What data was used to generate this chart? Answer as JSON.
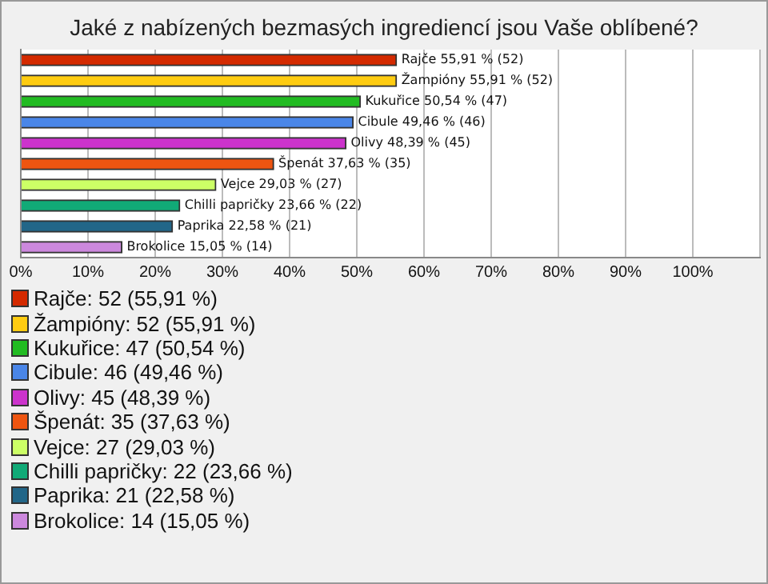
{
  "chart_data": {
    "type": "bar",
    "orientation": "horizontal",
    "stacked": true,
    "title": "Jaké z nabízených bezmasých ingrediencí jsou Vaše oblíbené?",
    "categories": [
      null,
      null,
      null,
      null,
      null,
      null,
      null,
      null,
      null,
      null
    ],
    "series": [
      {
        "name": "Rajče: 52 (55,91 %)",
        "color": "#d42a00",
        "values": [
          55.91,
          null,
          null,
          null,
          null,
          null,
          null,
          null,
          null,
          null
        ],
        "value_labels": [
          "Rajče 55,91 % (52)",
          null,
          null,
          null,
          null,
          null,
          null,
          null,
          null,
          null
        ]
      },
      {
        "name": "Žampióny: 52 (55,91 %)",
        "color": "#ffcc11",
        "values": [
          null,
          55.91,
          null,
          null,
          null,
          null,
          null,
          null,
          null,
          null
        ],
        "value_labels": [
          null,
          "Žampióny 55,91 % (52)",
          null,
          null,
          null,
          null,
          null,
          null,
          null,
          null
        ]
      },
      {
        "name": "Kukuřice: 47 (50,54 %)",
        "color": "#22bb22",
        "values": [
          null,
          null,
          50.54,
          null,
          null,
          null,
          null,
          null,
          null,
          null
        ],
        "value_labels": [
          null,
          null,
          "Kukuřice 50,54 % (47)",
          null,
          null,
          null,
          null,
          null,
          null,
          null
        ]
      },
      {
        "name": "Cibule: 46 (49,46 %)",
        "color": "#4a86e8",
        "values": [
          null,
          null,
          null,
          49.46,
          null,
          null,
          null,
          null,
          null,
          null
        ],
        "value_labels": [
          null,
          null,
          null,
          "Cibule 49,46 % (46)",
          null,
          null,
          null,
          null,
          null,
          null
        ]
      },
      {
        "name": "Olivy: 45 (48,39 %)",
        "color": "#cc33cc",
        "values": [
          null,
          null,
          null,
          null,
          48.39,
          null,
          null,
          null,
          null,
          null
        ],
        "value_labels": [
          null,
          null,
          null,
          null,
          "Olivy 48,39 % (45)",
          null,
          null,
          null,
          null,
          null
        ]
      },
      {
        "name": "Špenát: 35 (37,63 %)",
        "color": "#ee5511",
        "values": [
          null,
          null,
          null,
          null,
          null,
          37.63,
          null,
          null,
          null,
          null
        ],
        "value_labels": [
          null,
          null,
          null,
          null,
          null,
          "Špenát 37,63 % (35)",
          null,
          null,
          null,
          null
        ]
      },
      {
        "name": "Vejce: 27 (29,03 %)",
        "color": "#ccff66",
        "values": [
          null,
          null,
          null,
          null,
          null,
          null,
          29.03,
          null,
          null,
          null
        ],
        "value_labels": [
          null,
          null,
          null,
          null,
          null,
          null,
          "Vejce 29,03 % (27)",
          null,
          null,
          null
        ]
      },
      {
        "name": "Chilli papričky: 22 (23,66 %)",
        "color": "#11aa77",
        "values": [
          null,
          null,
          null,
          null,
          null,
          null,
          null,
          23.66,
          null,
          null
        ],
        "value_labels": [
          null,
          null,
          null,
          null,
          null,
          null,
          null,
          "Chilli papričky 23,66 % (22)",
          null,
          null
        ]
      },
      {
        "name": "Paprika: 21 (22,58 %)",
        "color": "#226688",
        "values": [
          null,
          null,
          null,
          null,
          null,
          null,
          null,
          null,
          22.58,
          null
        ],
        "value_labels": [
          null,
          null,
          null,
          null,
          null,
          null,
          null,
          null,
          "Paprika 22,58 % (21)",
          null
        ]
      },
      {
        "name": "Brokolice: 14 (15,05 %)",
        "color": "#cc88dd",
        "values": [
          null,
          null,
          null,
          null,
          null,
          null,
          null,
          null,
          null,
          15.05
        ],
        "value_labels": [
          null,
          null,
          null,
          null,
          null,
          null,
          null,
          null,
          null,
          "Brokolice 15,05 % (14)"
        ]
      }
    ],
    "xlim": [
      0,
      110
    ],
    "xticks": [
      {
        "value": 0,
        "label": "0%"
      },
      {
        "value": 10,
        "label": "10%"
      },
      {
        "value": 20,
        "label": "20%"
      },
      {
        "value": 30,
        "label": "30%"
      },
      {
        "value": 40,
        "label": "40%"
      },
      {
        "value": 50,
        "label": "50%"
      },
      {
        "value": 60,
        "label": "60%"
      },
      {
        "value": 70,
        "label": "70%"
      },
      {
        "value": 80,
        "label": "80%"
      },
      {
        "value": 90,
        "label": "90%"
      },
      {
        "value": 100,
        "label": "100%"
      },
      {
        "value": 110,
        "label": null
      }
    ],
    "grid": "x",
    "legend": "bottom"
  }
}
